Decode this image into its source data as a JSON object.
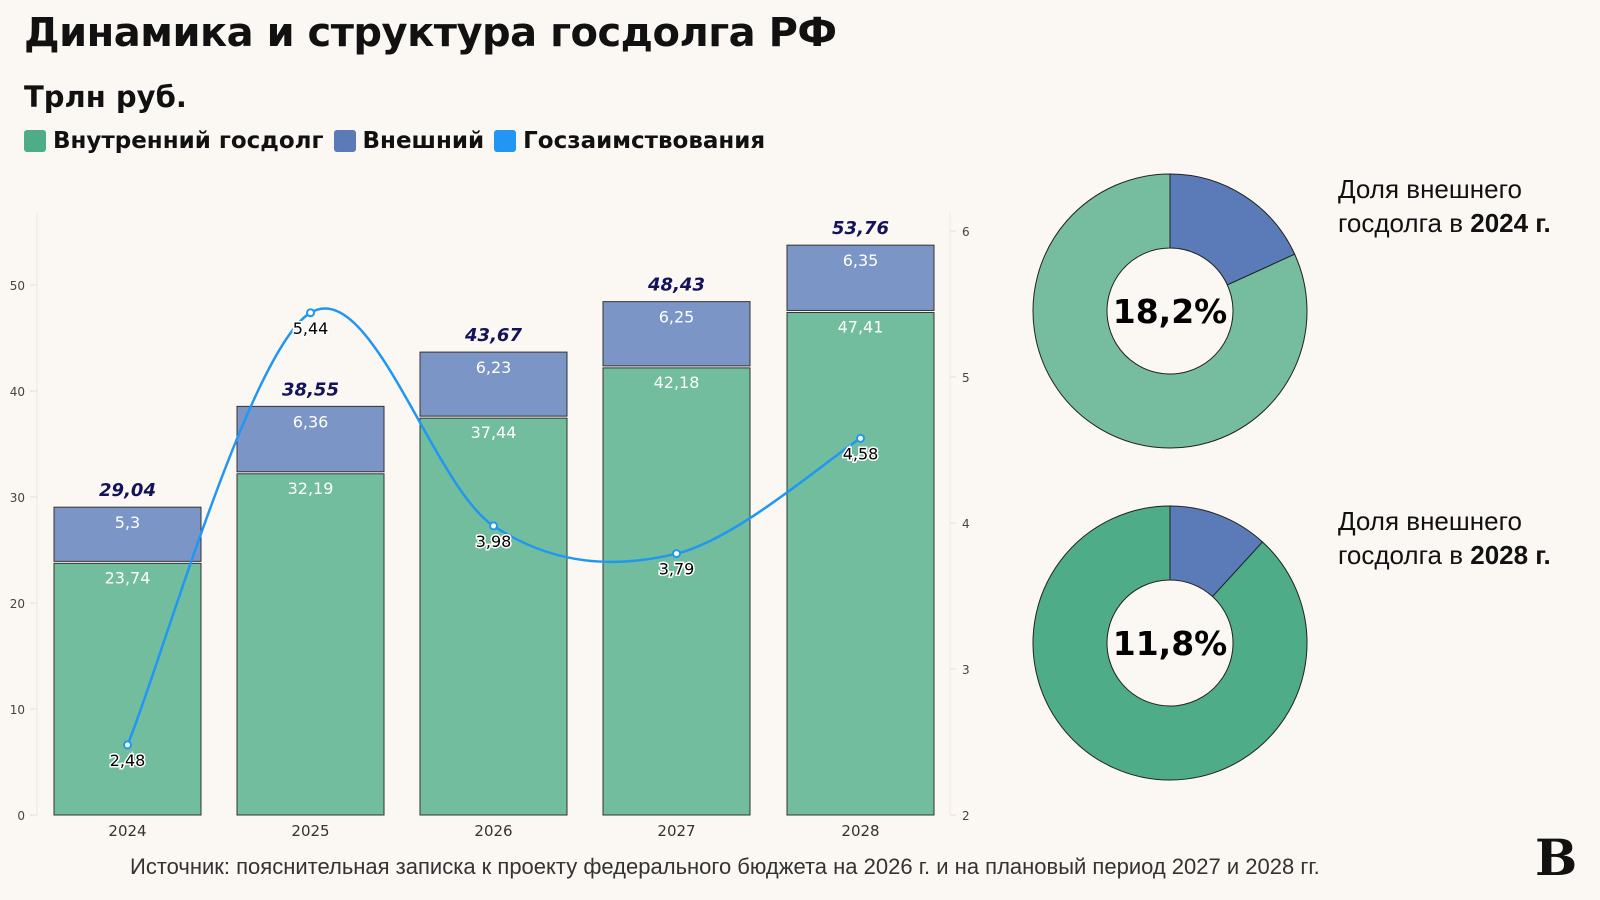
{
  "title": "Динамика и структура госдолга РФ",
  "subtitle": "Трлн руб.",
  "legend": [
    {
      "label": "Внутренний госдолг",
      "color": "#4fac88"
    },
    {
      "label": "Внешний",
      "color": "#5b7bb8"
    },
    {
      "label": "Госзаимствования",
      "color": "#2196f3"
    }
  ],
  "source": "Источник: пояснительная записка к проекту федерального бюджета на 2026 г. и на плановый период 2027 и 2028 гг.",
  "logo": "В",
  "chart_data": [
    {
      "type": "bar",
      "stacked": true,
      "categories": [
        "2024",
        "2025",
        "2026",
        "2027",
        "2028"
      ],
      "series": [
        {
          "name": "Внутренний госдолг",
          "axis": "left",
          "color": "#72bd9e",
          "values": [
            23.74,
            32.19,
            37.44,
            42.18,
            47.41
          ],
          "labels": [
            "23,74",
            "32,19",
            "37,44",
            "42,18",
            "47,41"
          ]
        },
        {
          "name": "Внешний",
          "axis": "left",
          "color": "#7b96c6",
          "values": [
            5.3,
            6.36,
            6.23,
            6.25,
            6.35
          ],
          "labels": [
            "5,3",
            "6,36",
            "6,23",
            "6,25",
            "6,35"
          ]
        },
        {
          "name": "Госзаимствования",
          "type": "line",
          "axis": "right",
          "color": "#2196f3",
          "values": [
            2.48,
            5.44,
            3.98,
            3.79,
            4.58
          ],
          "labels": [
            "2,48",
            "5,44",
            "3,98",
            "3,79",
            "4,58"
          ]
        }
      ],
      "totals": [
        "29,04",
        "38,55",
        "43,67",
        "48,43",
        "53,76"
      ],
      "y_left": {
        "range": [
          0,
          56
        ],
        "ticks": [
          "0",
          "10",
          "20",
          "30",
          "40",
          "50"
        ]
      },
      "y_right": {
        "range": [
          2,
          6.1
        ],
        "ticks": [
          "2",
          "3",
          "4",
          "5",
          "6"
        ]
      },
      "grid": false
    },
    {
      "type": "pie",
      "donut": true,
      "label": [
        "Доля внешнего",
        "госдолга в ",
        "2024 г."
      ],
      "center_text": "18,2%",
      "slices": [
        {
          "name": "Внешний",
          "value": 18.2,
          "color": "#5b7bb8"
        },
        {
          "name": "Внутренний госдолг",
          "value": 81.8,
          "color": "#76bda0"
        }
      ]
    },
    {
      "type": "pie",
      "donut": true,
      "label": [
        "Доля внешнего",
        "госдолга в ",
        "2028 г."
      ],
      "center_text": "11,8%",
      "slices": [
        {
          "name": "Внешний",
          "value": 11.8,
          "color": "#5b7bb8"
        },
        {
          "name": "Внутренний госдолг",
          "value": 88.2,
          "color": "#4fac88"
        }
      ]
    }
  ]
}
